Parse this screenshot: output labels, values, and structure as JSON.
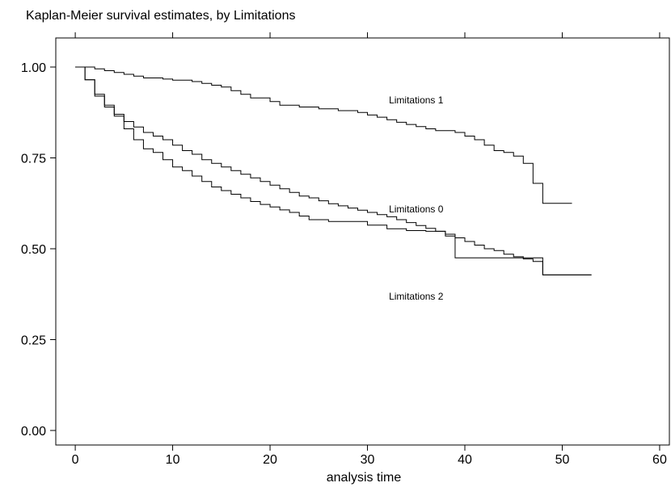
{
  "chart_data": {
    "type": "line",
    "title": "Kaplan-Meier survival estimates, by Limitations",
    "xlabel": "analysis time",
    "ylabel": "",
    "xlim": [
      -2,
      61
    ],
    "ylim": [
      -0.04,
      1.08
    ],
    "x_ticks": [
      0,
      10,
      20,
      30,
      40,
      50,
      60
    ],
    "x_tick_labels": [
      "0",
      "10",
      "20",
      "30",
      "40",
      "50",
      "60"
    ],
    "y_ticks": [
      0,
      0.25,
      0.5,
      0.75,
      1
    ],
    "y_tick_labels": [
      "0.00",
      "0.25",
      "0.50",
      "0.75",
      "1.00"
    ],
    "grid": false,
    "line_color": "#000000",
    "series": [
      {
        "name": "Limitations 1",
        "step": true,
        "label_at": [
          35,
          0.9
        ],
        "points": [
          [
            0,
            1.0
          ],
          [
            2,
            0.995
          ],
          [
            3,
            0.99
          ],
          [
            4,
            0.985
          ],
          [
            5,
            0.98
          ],
          [
            6,
            0.975
          ],
          [
            7,
            0.97
          ],
          [
            9,
            0.967
          ],
          [
            10,
            0.964
          ],
          [
            12,
            0.96
          ],
          [
            13,
            0.955
          ],
          [
            14,
            0.95
          ],
          [
            15,
            0.945
          ],
          [
            16,
            0.935
          ],
          [
            17,
            0.925
          ],
          [
            18,
            0.915
          ],
          [
            20,
            0.905
          ],
          [
            21,
            0.895
          ],
          [
            23,
            0.89
          ],
          [
            25,
            0.885
          ],
          [
            27,
            0.88
          ],
          [
            29,
            0.875
          ],
          [
            30,
            0.868
          ],
          [
            31,
            0.862
          ],
          [
            32,
            0.855
          ],
          [
            33,
            0.848
          ],
          [
            34,
            0.842
          ],
          [
            35,
            0.836
          ],
          [
            36,
            0.83
          ],
          [
            37,
            0.825
          ],
          [
            39,
            0.82
          ],
          [
            40,
            0.81
          ],
          [
            41,
            0.8
          ],
          [
            42,
            0.785
          ],
          [
            43,
            0.77
          ],
          [
            44,
            0.765
          ],
          [
            45,
            0.755
          ],
          [
            46,
            0.735
          ],
          [
            47,
            0.68
          ],
          [
            48,
            0.625
          ],
          [
            51,
            0.625
          ]
        ]
      },
      {
        "name": "Limitations 0",
        "step": true,
        "label_at": [
          35,
          0.6
        ],
        "points": [
          [
            0,
            1.0
          ],
          [
            1,
            0.965
          ],
          [
            2,
            0.925
          ],
          [
            3,
            0.895
          ],
          [
            4,
            0.87
          ],
          [
            5,
            0.85
          ],
          [
            6,
            0.835
          ],
          [
            7,
            0.82
          ],
          [
            8,
            0.81
          ],
          [
            9,
            0.8
          ],
          [
            10,
            0.785
          ],
          [
            11,
            0.77
          ],
          [
            12,
            0.76
          ],
          [
            13,
            0.745
          ],
          [
            14,
            0.735
          ],
          [
            15,
            0.725
          ],
          [
            16,
            0.715
          ],
          [
            17,
            0.705
          ],
          [
            18,
            0.695
          ],
          [
            19,
            0.685
          ],
          [
            20,
            0.675
          ],
          [
            21,
            0.665
          ],
          [
            22,
            0.655
          ],
          [
            23,
            0.645
          ],
          [
            24,
            0.64
          ],
          [
            25,
            0.632
          ],
          [
            26,
            0.624
          ],
          [
            27,
            0.618
          ],
          [
            28,
            0.612
          ],
          [
            29,
            0.606
          ],
          [
            30,
            0.6
          ],
          [
            31,
            0.594
          ],
          [
            32,
            0.588
          ],
          [
            33,
            0.58
          ],
          [
            34,
            0.572
          ],
          [
            35,
            0.564
          ],
          [
            36,
            0.556
          ],
          [
            37,
            0.548
          ],
          [
            38,
            0.54
          ],
          [
            39,
            0.53
          ],
          [
            40,
            0.52
          ],
          [
            41,
            0.51
          ],
          [
            42,
            0.5
          ],
          [
            43,
            0.495
          ],
          [
            44,
            0.485
          ],
          [
            45,
            0.478
          ],
          [
            46,
            0.472
          ],
          [
            47,
            0.465
          ],
          [
            48,
            0.428
          ],
          [
            53,
            0.428
          ]
        ]
      },
      {
        "name": "Limitations 2",
        "step": true,
        "label_at": [
          35,
          0.36
        ],
        "points": [
          [
            0,
            1.0
          ],
          [
            1,
            0.965
          ],
          [
            2,
            0.92
          ],
          [
            3,
            0.89
          ],
          [
            4,
            0.865
          ],
          [
            5,
            0.83
          ],
          [
            6,
            0.8
          ],
          [
            7,
            0.775
          ],
          [
            8,
            0.765
          ],
          [
            9,
            0.745
          ],
          [
            10,
            0.725
          ],
          [
            11,
            0.715
          ],
          [
            12,
            0.7
          ],
          [
            13,
            0.685
          ],
          [
            14,
            0.67
          ],
          [
            15,
            0.66
          ],
          [
            16,
            0.65
          ],
          [
            17,
            0.64
          ],
          [
            18,
            0.63
          ],
          [
            19,
            0.622
          ],
          [
            20,
            0.615
          ],
          [
            21,
            0.607
          ],
          [
            22,
            0.6
          ],
          [
            23,
            0.59
          ],
          [
            24,
            0.58
          ],
          [
            26,
            0.575
          ],
          [
            28,
            0.575
          ],
          [
            30,
            0.565
          ],
          [
            32,
            0.555
          ],
          [
            34,
            0.55
          ],
          [
            36,
            0.548
          ],
          [
            38,
            0.535
          ],
          [
            39,
            0.475
          ],
          [
            40,
            0.475
          ],
          [
            47,
            0.475
          ],
          [
            48,
            0.428
          ],
          [
            53,
            0.428
          ]
        ]
      }
    ]
  }
}
